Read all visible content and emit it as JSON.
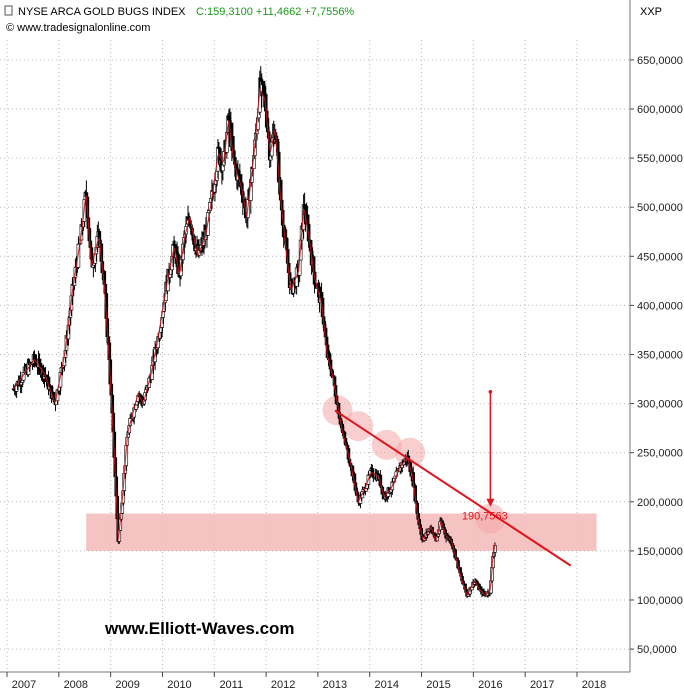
{
  "header": {
    "title": "NYSE ARCA GOLD BUGS INDEX",
    "quote": "C:159,3100 +11,4662 +7,7556%",
    "website": "© www.tradesignalonline.com",
    "symbol": "XXP"
  },
  "watermark": "www.Elliott-Waves.com",
  "colors": {
    "quote": "#1a9a1a",
    "line": "#e0141c",
    "zone": "#f4b8b8",
    "price": "#000000"
  },
  "chart_data": {
    "type": "candlestick",
    "x_ticks": [
      "2007",
      "2008",
      "2009",
      "2010",
      "2011",
      "2012",
      "2013",
      "2014",
      "2015",
      "2016",
      "2017",
      "2018"
    ],
    "y_ticks": [
      "50,0000",
      "100,0000",
      "150,0000",
      "200,0000",
      "250,0000",
      "300,0000",
      "350,0000",
      "400,0000",
      "450,0000",
      "500,0000",
      "550,0000",
      "600,0000",
      "650,0000"
    ],
    "y_values": [
      50,
      100,
      150,
      200,
      250,
      300,
      350,
      400,
      450,
      500,
      550,
      600,
      650
    ],
    "ylim": [
      30,
      690
    ],
    "xlim": [
      2006.75,
      2018.5
    ],
    "price_path": [
      [
        2006.8,
        315
      ],
      [
        2007.0,
        330
      ],
      [
        2007.2,
        345
      ],
      [
        2007.4,
        330
      ],
      [
        2007.6,
        300
      ],
      [
        2007.8,
        355
      ],
      [
        2007.95,
        420
      ],
      [
        2008.1,
        470
      ],
      [
        2008.2,
        515
      ],
      [
        2008.3,
        440
      ],
      [
        2008.45,
        470
      ],
      [
        2008.55,
        420
      ],
      [
        2008.65,
        340
      ],
      [
        2008.75,
        240
      ],
      [
        2008.82,
        160
      ],
      [
        2008.9,
        205
      ],
      [
        2009.0,
        270
      ],
      [
        2009.1,
        290
      ],
      [
        2009.2,
        310
      ],
      [
        2009.3,
        300
      ],
      [
        2009.45,
        330
      ],
      [
        2009.6,
        370
      ],
      [
        2009.75,
        420
      ],
      [
        2009.9,
        460
      ],
      [
        2010.0,
        430
      ],
      [
        2010.1,
        470
      ],
      [
        2010.2,
        490
      ],
      [
        2010.35,
        450
      ],
      [
        2010.5,
        470
      ],
      [
        2010.6,
        500
      ],
      [
        2010.75,
        555
      ],
      [
        2010.85,
        545
      ],
      [
        2010.95,
        590
      ],
      [
        2011.05,
        545
      ],
      [
        2011.2,
        520
      ],
      [
        2011.3,
        490
      ],
      [
        2011.45,
        560
      ],
      [
        2011.55,
        620
      ],
      [
        2011.65,
        610
      ],
      [
        2011.75,
        555
      ],
      [
        2011.85,
        580
      ],
      [
        2011.95,
        510
      ],
      [
        2012.05,
        460
      ],
      [
        2012.15,
        415
      ],
      [
        2012.3,
        435
      ],
      [
        2012.4,
        500
      ],
      [
        2012.5,
        470
      ],
      [
        2012.6,
        430
      ],
      [
        2012.75,
        400
      ],
      [
        2012.85,
        350
      ],
      [
        2012.95,
        330
      ],
      [
        2013.05,
        300
      ],
      [
        2013.15,
        270
      ],
      [
        2013.3,
        240
      ],
      [
        2013.45,
        200
      ],
      [
        2013.55,
        210
      ],
      [
        2013.7,
        230
      ],
      [
        2013.85,
        225
      ],
      [
        2013.95,
        205
      ],
      [
        2014.1,
        215
      ],
      [
        2014.25,
        235
      ],
      [
        2014.4,
        245
      ],
      [
        2014.5,
        225
      ],
      [
        2014.6,
        185
      ],
      [
        2014.7,
        160
      ],
      [
        2014.85,
        175
      ],
      [
        2014.95,
        160
      ],
      [
        2015.05,
        180
      ],
      [
        2015.15,
        165
      ],
      [
        2015.25,
        160
      ],
      [
        2015.35,
        140
      ],
      [
        2015.45,
        120
      ],
      [
        2015.55,
        105
      ],
      [
        2015.7,
        120
      ],
      [
        2015.8,
        110
      ],
      [
        2015.9,
        105
      ],
      [
        2016.0,
        110
      ],
      [
        2016.05,
        145
      ],
      [
        2016.1,
        160
      ]
    ],
    "trendline": {
      "start": [
        2013.0,
        293
      ],
      "end": [
        2017.55,
        135
      ],
      "color": "#e0141c"
    },
    "support_zone": {
      "x_start": 2008.2,
      "x_end": 2018.05,
      "y_low": 150,
      "y_high": 188
    },
    "highlighted_touches": [
      {
        "x": 2013.05,
        "y": 293
      },
      {
        "x": 2013.45,
        "y": 277
      },
      {
        "x": 2014.0,
        "y": 258
      },
      {
        "x": 2014.45,
        "y": 250
      },
      {
        "x": 2016.0,
        "y": 183
      }
    ],
    "projection_arrow": {
      "x": 2016.0,
      "y_from": 312,
      "y_to": 195
    },
    "annotations": [
      {
        "text": "190,7563",
        "x": 2015.45,
        "y": 186
      }
    ]
  }
}
